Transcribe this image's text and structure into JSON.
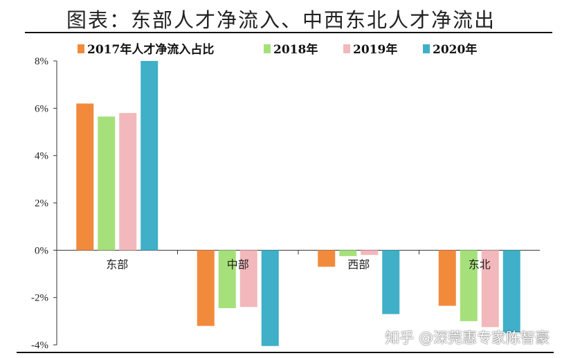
{
  "title": "图表：东部人才净流入、中西东北人才净流出",
  "watermark": "知乎 @深莞惠专家陈智豪",
  "chart_data": {
    "type": "bar",
    "categories": [
      "东部",
      "中部",
      "西部",
      "东北"
    ],
    "series": [
      {
        "name": "2017年人才净流入占比",
        "color": "#f28a3c",
        "values": [
          6.2,
          -3.2,
          -0.7,
          -2.35
        ]
      },
      {
        "name": "2018年",
        "color": "#a6e07a",
        "values": [
          5.65,
          -2.45,
          -0.25,
          -3.0
        ]
      },
      {
        "name": "2019年",
        "color": "#f2b8bb",
        "values": [
          5.8,
          -2.4,
          -0.2,
          -3.25
        ]
      },
      {
        "name": "2020年",
        "color": "#3fb0c8",
        "values": [
          8.0,
          -4.05,
          -2.7,
          -3.5
        ]
      }
    ],
    "yticks": [
      "8%",
      "6%",
      "4%",
      "2%",
      "0%",
      "-2%",
      "-4%"
    ],
    "ytick_values": [
      8,
      6,
      4,
      2,
      0,
      -2,
      -4
    ],
    "ylim": [
      -4,
      8
    ],
    "legend_position": "top",
    "grid": false
  }
}
